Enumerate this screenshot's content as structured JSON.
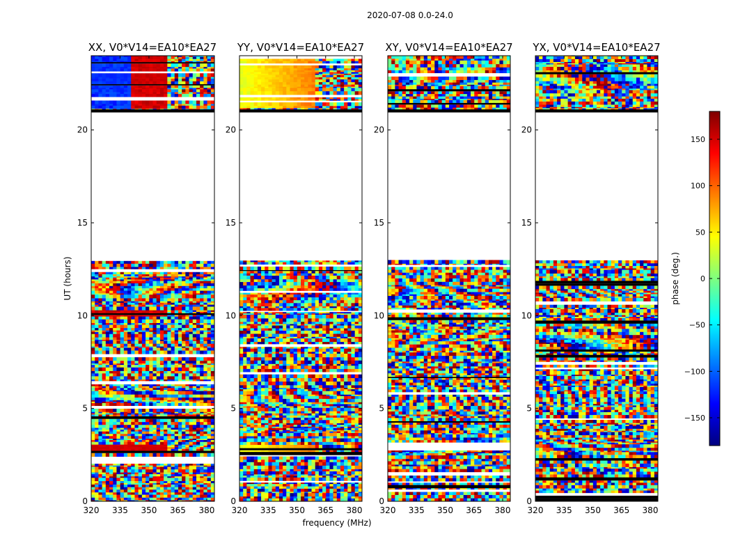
{
  "figure": {
    "suptitle": "2020-07-08 0.0-24.0"
  },
  "chart_data": {
    "type": "heatmap",
    "xlabel": "frequency (MHz)",
    "ylabel": "UT (hours)",
    "xlim": [
      320,
      384
    ],
    "ylim": [
      0,
      24
    ],
    "x_ticks": [
      320,
      335,
      350,
      365,
      380
    ],
    "y_ticks": [
      0,
      5,
      10,
      15,
      20
    ],
    "colorbar": {
      "label": "phase (deg.)",
      "range": [
        -180,
        180
      ],
      "ticks": [
        -150,
        -100,
        -50,
        0,
        50,
        100,
        150
      ],
      "colormap": "jet",
      "colors": [
        "#00007f",
        "#0000ff",
        "#007fff",
        "#00ffff",
        "#7fff7f",
        "#ffff00",
        "#ff7f00",
        "#ff0000",
        "#7f0000"
      ]
    },
    "data_gap_hours": [
      13.0,
      21.0
    ],
    "panels": [
      {
        "title": "XX, V0*V14=EA10*EA27",
        "character": "XX"
      },
      {
        "title": "YY, V0*V14=EA10*EA27",
        "character": "YY"
      },
      {
        "title": "XY, V0*V14=EA10*EA27",
        "character": "XY"
      },
      {
        "title": "YX, V0*V14=EA10*EA27",
        "character": "YX"
      }
    ]
  }
}
